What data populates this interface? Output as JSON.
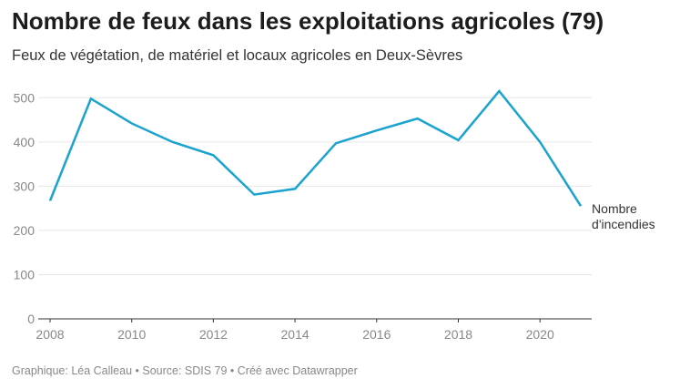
{
  "title": "Nombre de feux dans les exploitations agricoles (79)",
  "subtitle": "Feux de végétation, de matériel et locaux agricoles en Deux-Sèvres",
  "footer": "Graphique: Léa Calleau • Source: SDIS 79 • Créé avec Datawrapper",
  "chart_data": {
    "type": "line",
    "title": "Nombre de feux dans les exploitations agricoles (79)",
    "x": [
      2008,
      2009,
      2010,
      2011,
      2012,
      2013,
      2014,
      2015,
      2016,
      2017,
      2018,
      2019,
      2020,
      2021
    ],
    "series": [
      {
        "name": "Nombre d'incendies",
        "label_lines": [
          "Nombre",
          "d'incendies"
        ],
        "color": "#1ba3d0",
        "values": [
          267,
          498,
          442,
          400,
          370,
          281,
          294,
          397,
          426,
          453,
          404,
          515,
          400,
          255
        ]
      }
    ],
    "xticks": [
      "2008",
      "2010",
      "2012",
      "2014",
      "2016",
      "2018",
      "2020"
    ],
    "yticks": [
      "0",
      "100",
      "200",
      "300",
      "400",
      "500"
    ],
    "ylim": [
      0,
      500
    ],
    "xlabel": "",
    "ylabel": "",
    "grid": true,
    "legend": "inline-end"
  }
}
